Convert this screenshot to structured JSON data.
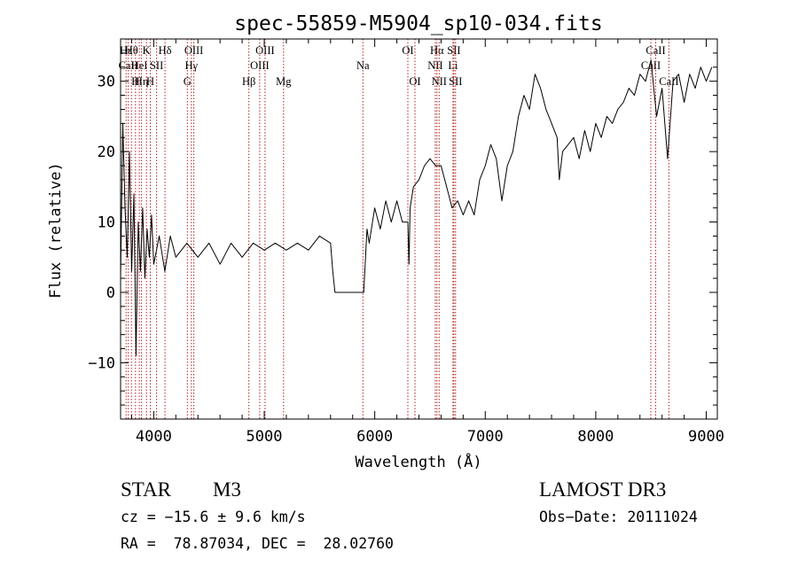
{
  "chart_data": {
    "type": "line",
    "title": "spec-55859-M5904_sp10-034.fits",
    "xlabel": "Wavelength (Å)",
    "ylabel": "Flux (relative)",
    "xlim": [
      3700,
      9100
    ],
    "ylim": [
      -18,
      36
    ],
    "x_ticks": [
      4000,
      5000,
      6000,
      7000,
      8000,
      9000
    ],
    "y_ticks": [
      -10,
      0,
      10,
      20,
      30
    ],
    "grid": false,
    "series": [
      {
        "name": "flux",
        "x": [
          3700,
          3720,
          3740,
          3760,
          3780,
          3800,
          3820,
          3840,
          3860,
          3880,
          3900,
          3920,
          3940,
          3960,
          3980,
          4000,
          4050,
          4100,
          4150,
          4200,
          4300,
          4400,
          4500,
          4600,
          4700,
          4800,
          4900,
          5000,
          5100,
          5200,
          5300,
          5400,
          5500,
          5600,
          5620,
          5640,
          5660,
          5700,
          5800,
          5900,
          5930,
          5950,
          6000,
          6050,
          6100,
          6150,
          6200,
          6250,
          6300,
          6310,
          6320,
          6350,
          6400,
          6450,
          6500,
          6550,
          6600,
          6650,
          6700,
          6750,
          6800,
          6850,
          6900,
          6950,
          7000,
          7050,
          7100,
          7150,
          7200,
          7250,
          7300,
          7350,
          7400,
          7450,
          7500,
          7550,
          7600,
          7650,
          7670,
          7700,
          7750,
          7800,
          7850,
          7900,
          7950,
          8000,
          8050,
          8100,
          8150,
          8200,
          8250,
          8300,
          8350,
          8400,
          8450,
          8500,
          8550,
          8600,
          8650,
          8700,
          8750,
          8800,
          8850,
          8900,
          8950,
          9000,
          9050
        ],
        "y": [
          2,
          24,
          12,
          5,
          20,
          3,
          14,
          -9,
          10,
          3,
          12,
          2,
          9,
          5,
          11,
          4,
          8,
          3,
          8,
          5,
          7,
          5,
          7,
          4,
          7,
          5,
          7,
          6,
          7,
          6,
          7,
          6,
          8,
          7,
          3,
          0,
          0,
          0,
          0,
          0,
          9,
          7,
          12,
          9,
          13,
          10,
          13,
          10,
          10,
          4,
          12,
          15,
          16,
          18,
          19,
          18,
          18,
          15,
          12,
          13,
          11,
          13,
          11,
          16,
          18,
          21,
          19,
          13,
          18,
          20,
          25,
          28,
          26,
          31,
          29,
          26,
          24,
          22,
          16,
          20,
          21,
          22,
          19,
          23,
          20,
          24,
          22,
          25,
          24,
          26,
          27,
          29,
          28,
          31,
          30,
          33,
          25,
          29,
          19,
          30,
          31,
          27,
          31,
          29,
          32,
          30,
          32
        ]
      }
    ],
    "lines": [
      {
        "x": 3750,
        "label": "Hε",
        "row": 0
      },
      {
        "x": 3770,
        "label": "CaII",
        "row": 1
      },
      {
        "x": 3798,
        "label": "Hθ",
        "row": 0
      },
      {
        "x": 3835,
        "label": "H",
        "row": 2
      },
      {
        "x": 3869,
        "label": "HeI",
        "row": 1
      },
      {
        "x": 3889,
        "label": "Hη",
        "row": 2
      },
      {
        "x": 3934,
        "label": "K",
        "row": 0
      },
      {
        "x": 3969,
        "label": "H",
        "row": 2
      },
      {
        "x": 4026,
        "label": "SII",
        "row": 1
      },
      {
        "x": 4102,
        "label": "Hδ",
        "row": 0
      },
      {
        "x": 4304,
        "label": "G",
        "row": 2
      },
      {
        "x": 4340,
        "label": "Hγ",
        "row": 1
      },
      {
        "x": 4363,
        "label": "OIII",
        "row": 0
      },
      {
        "x": 4861,
        "label": "Hβ",
        "row": 2
      },
      {
        "x": 4959,
        "label": "OIII",
        "row": 1
      },
      {
        "x": 5007,
        "label": "OIII",
        "row": 0
      },
      {
        "x": 5175,
        "label": "Mg",
        "row": 2
      },
      {
        "x": 5893,
        "label": "Na",
        "row": 1
      },
      {
        "x": 6300,
        "label": "OI",
        "row": 0
      },
      {
        "x": 6364,
        "label": "OI",
        "row": 2
      },
      {
        "x": 6548,
        "label": "NII",
        "row": 1
      },
      {
        "x": 6563,
        "label": "Hα",
        "row": 0
      },
      {
        "x": 6583,
        "label": "NII",
        "row": 2
      },
      {
        "x": 6708,
        "label": "Li",
        "row": 1
      },
      {
        "x": 6716,
        "label": "SII",
        "row": 0
      },
      {
        "x": 6731,
        "label": "SII",
        "row": 2
      },
      {
        "x": 8498,
        "label": "CaII",
        "row": 1
      },
      {
        "x": 8542,
        "label": "CaII",
        "row": 0
      },
      {
        "x": 8662,
        "label": "CaII",
        "row": 2
      }
    ]
  },
  "info": {
    "class_label": "STAR",
    "subclass": "M3",
    "survey": "LAMOST DR3",
    "cz_text": "cz = −15.6 ± 9.6 km/s",
    "obs_date": "Obs−Date: 20111024",
    "coords": "RA =  78.87034, DEC =  28.02760"
  }
}
